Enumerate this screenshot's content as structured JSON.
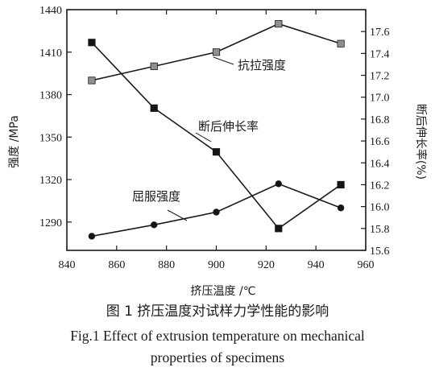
{
  "chart_data": {
    "type": "line",
    "xlabel": "挤压温度 /℃",
    "ylabel_left": "强度 /MPa",
    "ylabel_right": "断后伸长率(%)",
    "xlim": [
      840,
      960
    ],
    "xticks": [
      840,
      860,
      880,
      900,
      920,
      940,
      960
    ],
    "ylim_left": [
      1270,
      1440
    ],
    "yticks_left": [
      1290,
      1320,
      1350,
      1380,
      1410,
      1440
    ],
    "ylim_right": [
      15.6,
      17.8
    ],
    "yticks_right": [
      "15.6",
      "15.8",
      "16.0",
      "16.2",
      "16.4",
      "16.6",
      "16.8",
      "17.0",
      "17.2",
      "17.4",
      "17.6"
    ],
    "x": [
      850,
      875,
      900,
      925,
      950
    ],
    "series": [
      {
        "name": "抗拉强度",
        "axis": "left",
        "marker": "square-gray",
        "values": [
          1390,
          1400,
          1410,
          1430,
          1416
        ]
      },
      {
        "name": "断后伸长率",
        "axis": "right",
        "marker": "square-black",
        "values": [
          17.5,
          16.9,
          16.5,
          15.8,
          16.2
        ]
      },
      {
        "name": "屈服强度",
        "axis": "left",
        "marker": "circle-black",
        "values": [
          1280,
          1288,
          1297,
          1317,
          1300
        ]
      }
    ],
    "grid": false
  },
  "caption": {
    "cn": "图 1   挤压温度对试样力学性能的影响",
    "en_line1": "Fig.1   Effect of extrusion temperature on mechanical",
    "en_line2": "properties of specimens"
  },
  "colors": {
    "axis": "#1a1a1a",
    "line": "#1a1a1a",
    "marker_gray": "#909090",
    "marker_black": "#151515"
  }
}
